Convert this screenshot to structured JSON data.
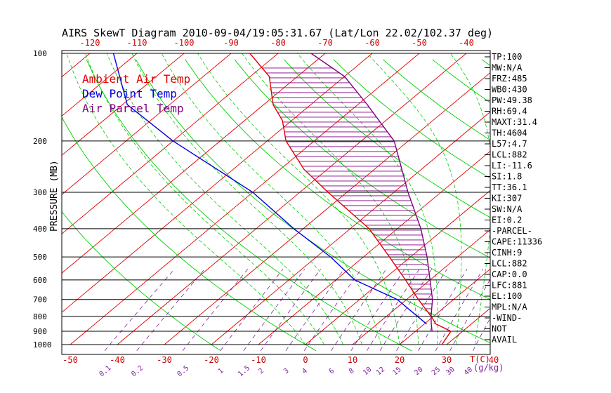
{
  "chart_data": {
    "type": "line",
    "title": "AIRS SkewT Diagram 2010-09-04/19:05:31.67 (Lat/Lon 22.02/102.37 deg)",
    "ylabel": "PRESSURE (MB)",
    "xlabel": "T(C)",
    "y_scale": "log",
    "ylim": [
      1000,
      100
    ],
    "y_ticks": [
      100,
      200,
      300,
      400,
      500,
      600,
      700,
      800,
      900,
      1000
    ],
    "x_ticks_top": [
      -120,
      -110,
      -100,
      -90,
      -80,
      -70,
      -60,
      -50,
      -40
    ],
    "x_ticks_bottom": [
      -50,
      -40,
      -30,
      -20,
      -10,
      0,
      10,
      20,
      30,
      40
    ],
    "mixing_ratio_label": "(g/kg)",
    "mixing_ratio_labels": [
      "0.1",
      "0.2",
      "0.5",
      "1",
      "1.5",
      "2",
      "3",
      "4",
      "6",
      "8",
      "10",
      "12",
      "15",
      "20",
      "25",
      "30",
      "40"
    ],
    "legend": [
      "Ambient Air Temp",
      "Dew Point Temp",
      "Air Parcel Temp"
    ],
    "series": [
      {
        "name": "Ambient Air Temp",
        "color": "#e00000",
        "points": [
          [
            1000,
            29.0
          ],
          [
            900,
            27.5
          ],
          [
            850,
            22.5
          ],
          [
            800,
            19.5
          ],
          [
            700,
            12.5
          ],
          [
            600,
            4.8
          ],
          [
            500,
            -4.5
          ],
          [
            400,
            -16.0
          ],
          [
            300,
            -34.0
          ],
          [
            250,
            -45.0
          ],
          [
            200,
            -56.0
          ],
          [
            170,
            -62.0
          ],
          [
            150,
            -68.0
          ],
          [
            120,
            -76.0
          ],
          [
            100,
            -86.0
          ]
        ]
      },
      {
        "name": "Dew Point Temp",
        "color": "#0000e0",
        "points": [
          [
            850,
            20.5
          ],
          [
            700,
            8.0
          ],
          [
            600,
            -6.0
          ],
          [
            500,
            -17.0
          ],
          [
            400,
            -32.0
          ],
          [
            300,
            -50.0
          ],
          [
            200,
            -80.0
          ],
          [
            150,
            -99.0
          ],
          [
            100,
            -115.0
          ]
        ]
      },
      {
        "name": "Air Parcel Temp",
        "color": "#800080",
        "points": [
          [
            900,
            23.5
          ],
          [
            850,
            21.5
          ],
          [
            800,
            19.5
          ],
          [
            700,
            15.5
          ],
          [
            600,
            10.0
          ],
          [
            500,
            3.5
          ],
          [
            400,
            -5.0
          ],
          [
            300,
            -17.0
          ],
          [
            200,
            -33.0
          ],
          [
            150,
            -48.0
          ],
          [
            120,
            -60.0
          ],
          [
            100,
            -73.0
          ]
        ]
      }
    ],
    "indices": [
      "TP:100",
      "MW:N/A",
      "FRZ:485",
      "WB0:430",
      "PW:49.38",
      "RH:69.4",
      "MAXT:31.4",
      "TH:4604",
      "L57:4.7",
      "LCL:882",
      "LI:-11.6",
      "SI:1.8",
      "TT:36.1",
      "KI:307",
      "SW:N/A",
      "EI:0.2",
      "-PARCEL-",
      "CAPE:11336",
      "CINH:9",
      "LCL:882",
      "CAP:0.0",
      "LFC:881",
      "EL:100",
      "MPL:N/A",
      "-WIND-",
      "NOT",
      "AVAIL"
    ],
    "colors": {
      "isotherm": "#e00000",
      "dry_adiabat": "#00d000",
      "moist_adiabat": "#00d000",
      "mixing_ratio": "#8020a0",
      "isobar": "#000000",
      "cape_hatch": "#800080"
    }
  }
}
